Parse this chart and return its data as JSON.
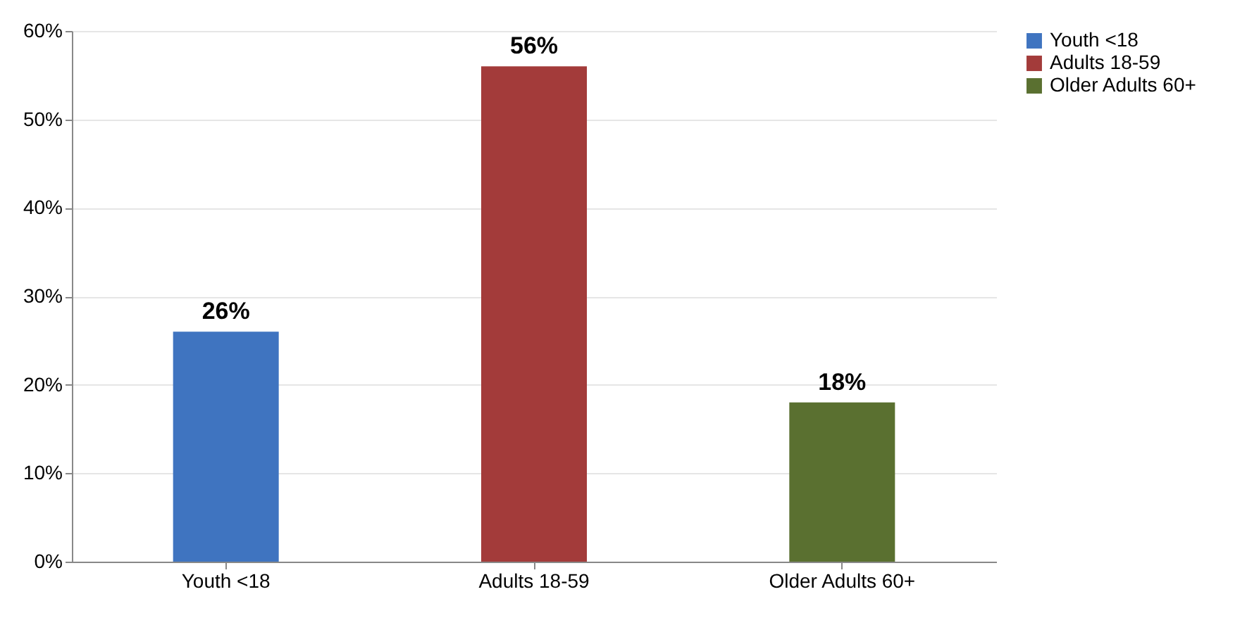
{
  "chart_data": {
    "type": "bar",
    "categories": [
      "Youth <18",
      "Adults  18-59",
      "Older Adults 60+"
    ],
    "stacked": true,
    "series": [
      {
        "name": "Youth <18",
        "color": "#3f74c0",
        "values": [
          26,
          null,
          null
        ],
        "value_labels": [
          "26%",
          null,
          null
        ]
      },
      {
        "name": "Adults  18-59",
        "color": "#a33b3a",
        "values": [
          null,
          56,
          null
        ],
        "value_labels": [
          null,
          "56%",
          null
        ]
      },
      {
        "name": "Older Adults 60+",
        "color": "#5a7030",
        "values": [
          null,
          null,
          18
        ],
        "value_labels": [
          null,
          null,
          "18%"
        ]
      }
    ],
    "ylim": [
      0,
      60
    ],
    "yticks": [
      {
        "value": 0,
        "label": "0%"
      },
      {
        "value": 10,
        "label": "10%"
      },
      {
        "value": 20,
        "label": "20%"
      },
      {
        "value": 30,
        "label": "30%"
      },
      {
        "value": 40,
        "label": "40%"
      },
      {
        "value": 50,
        "label": "50%"
      },
      {
        "value": 60,
        "label": "60%"
      }
    ],
    "grid": "y",
    "legend": "right"
  }
}
